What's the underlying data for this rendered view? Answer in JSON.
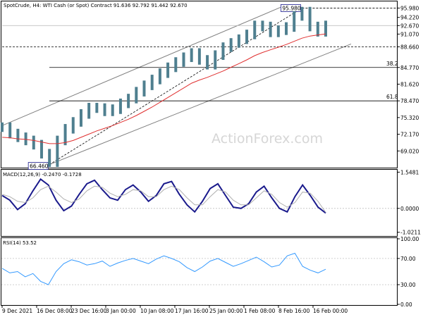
{
  "header": {
    "main_title": "SpotCrude, H4:  WTI Cash (or Spot) Contract  91.636 92.792 91.442 92.670",
    "macd_title": "MACD(12,26,9) -0.2470 -0.1728",
    "rsi_title": "RSI(14) 53.52"
  },
  "watermark": "ActionForex.com",
  "chart_data": [
    {
      "type": "line",
      "name": "price",
      "ylim": [
        66.0,
        97.1
      ],
      "ytick_labels": [
        "95.980",
        "94.220",
        "92.670",
        "91.070",
        "88.660",
        "84.770",
        "81.620",
        "78.470",
        "75.320",
        "72.170",
        "69.020"
      ],
      "ytick_values": [
        95.98,
        94.22,
        92.67,
        91.07,
        88.66,
        84.77,
        81.62,
        78.47,
        75.32,
        72.17,
        69.02
      ],
      "xtick_labels": [
        "9 Dec 2021",
        "16 Dec 08:00",
        "23 Dec 16:00",
        "3 Jan 00:00",
        "10 Jan 08:00",
        "17 Jan 16:00",
        "25 Jan 00:00",
        "1 Feb 08:00",
        "8 Feb 16:00",
        "16 Feb 00:00"
      ],
      "annotations": {
        "high_label": "95.980",
        "low_label": "66.460",
        "fib_levels": [
          {
            "label": "38.2",
            "value": 84.77
          },
          {
            "label": "61.8",
            "value": 78.47
          }
        ],
        "support_level": 88.66,
        "last_price": 92.67
      },
      "series": [
        {
          "name": "close",
          "color": "#4f7f8f",
          "values": [
            73.5,
            72.3,
            71.6,
            71.0,
            70.2,
            68.5,
            66.9,
            71.0,
            73.2,
            74.5,
            76.0,
            77.2,
            77.1,
            76.5,
            76.9,
            78.0,
            78.9,
            80.2,
            81.4,
            82.5,
            83.7,
            84.8,
            85.8,
            86.7,
            87.5,
            86.2,
            85.3,
            87.1,
            88.6,
            89.4,
            90.1,
            91.0,
            92.7,
            92.5,
            91.4,
            91.8,
            92.4,
            94.5,
            95.3,
            92.5,
            91.5,
            92.7
          ]
        },
        {
          "name": "moving-average",
          "color": "#e03030",
          "values": [
            71.6,
            71.5,
            71.3,
            71.2,
            71.0,
            70.7,
            70.4,
            70.4,
            70.6,
            71.0,
            71.6,
            72.2,
            72.8,
            73.3,
            73.8,
            74.4,
            75.0,
            75.7,
            76.5,
            77.3,
            78.2,
            79.1,
            80.0,
            80.9,
            81.8,
            82.4,
            82.9,
            83.5,
            84.1,
            84.8,
            85.5,
            86.2,
            87.0,
            87.6,
            88.1,
            88.6,
            89.1,
            89.7,
            90.3,
            90.7,
            90.9,
            91.1
          ]
        }
      ]
    },
    {
      "type": "line",
      "name": "MACD(12,26,9)",
      "ylim": [
        -1.15,
        1.62
      ],
      "ytick_labels": [
        "1.5481",
        "0.0000",
        "-1.0211"
      ],
      "ytick_values": [
        1.5481,
        0.0,
        -1.0211
      ],
      "series": [
        {
          "name": "macd",
          "color": "#1a1a8c",
          "values": [
            0.55,
            0.35,
            -0.05,
            0.2,
            0.75,
            1.25,
            1.0,
            0.35,
            -0.1,
            0.1,
            0.6,
            1.05,
            1.2,
            0.8,
            0.45,
            0.35,
            0.8,
            1.0,
            0.7,
            0.3,
            0.55,
            1.05,
            1.15,
            0.6,
            0.15,
            -0.15,
            0.3,
            0.85,
            1.05,
            0.55,
            0.05,
            0.0,
            0.2,
            0.7,
            0.95,
            0.45,
            0.0,
            -0.15,
            0.5,
            1.0,
            0.55,
            0.05,
            -0.2
          ]
        },
        {
          "name": "signal",
          "color": "#b0b0b0",
          "values": [
            0.6,
            0.5,
            0.3,
            0.25,
            0.45,
            0.8,
            0.95,
            0.7,
            0.4,
            0.25,
            0.4,
            0.75,
            0.95,
            0.9,
            0.65,
            0.5,
            0.6,
            0.8,
            0.75,
            0.5,
            0.5,
            0.8,
            0.95,
            0.8,
            0.45,
            0.15,
            0.15,
            0.5,
            0.8,
            0.7,
            0.35,
            0.15,
            0.15,
            0.45,
            0.75,
            0.6,
            0.25,
            0.05,
            0.25,
            0.7,
            0.65,
            0.3,
            -0.17
          ]
        }
      ]
    },
    {
      "type": "line",
      "name": "RSI(14)",
      "ylim": [
        0,
        100
      ],
      "ytick_labels": [
        "100.00",
        "70.00",
        "30.00",
        "0.00"
      ],
      "ytick_values": [
        100,
        70,
        30,
        0
      ],
      "series": [
        {
          "name": "rsi",
          "color": "#3399ff",
          "values": [
            55,
            48,
            50,
            42,
            47,
            35,
            30,
            50,
            62,
            68,
            65,
            60,
            62,
            66,
            58,
            63,
            67,
            70,
            66,
            62,
            69,
            74,
            70,
            65,
            56,
            50,
            57,
            66,
            70,
            64,
            58,
            62,
            67,
            72,
            65,
            57,
            60,
            74,
            78,
            58,
            52,
            48,
            53.52
          ]
        }
      ]
    }
  ]
}
